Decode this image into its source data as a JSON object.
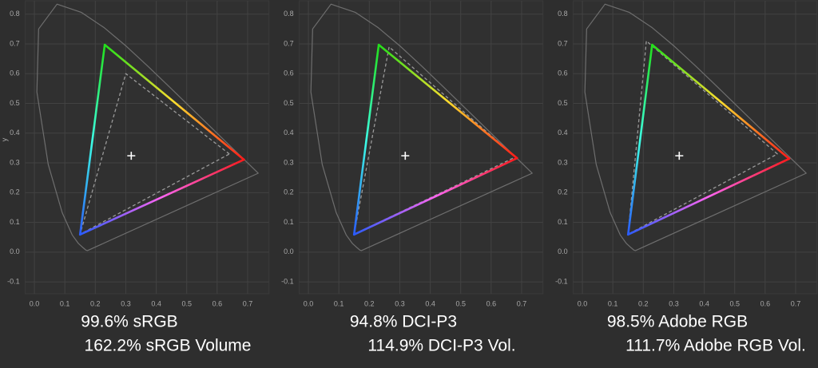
{
  "chart_data": [
    {
      "type": "gamut",
      "ylabel": "y",
      "grid": true,
      "xlim": [
        -0.03,
        0.77
      ],
      "ylim": [
        -0.14,
        0.845
      ],
      "xticks": [
        {
          "value": 0,
          "label": "0.0"
        },
        0.1,
        0.2,
        0.3,
        0.4,
        0.5,
        0.6,
        0.7
      ],
      "yticks": [
        -0.1,
        {
          "value": 0,
          "label": "0.0"
        },
        0.1,
        0.2,
        0.3,
        0.4,
        0.5,
        0.6,
        0.7,
        0.8
      ],
      "annotations": [
        "99.6% sRGB",
        "162.2% sRGB Volume"
      ],
      "series": [
        {
          "style": "outline",
          "color": "#6e6e6e",
          "x": [
            0.1741,
            0.1689,
            0.1566,
            0.144,
            0.1241,
            0.0913,
            0.0454,
            0.0082,
            0.0139,
            0.0743,
            0.1547,
            0.2296,
            0.3016,
            0.3731,
            0.4441,
            0.5125,
            0.5752,
            0.627,
            0.6658,
            0.6915,
            0.7347
          ],
          "y": [
            0.005,
            0.0069,
            0.0177,
            0.0297,
            0.0578,
            0.1327,
            0.295,
            0.5384,
            0.7502,
            0.8338,
            0.8059,
            0.7543,
            0.6923,
            0.6245,
            0.5547,
            0.4866,
            0.4242,
            0.3725,
            0.334,
            0.3083,
            0.2653
          ]
        },
        {
          "style": "dashed",
          "color": "#9a9a9a",
          "x": [
            0.64,
            0.3,
            0.15
          ],
          "y": [
            0.33,
            0.6,
            0.06
          ]
        },
        {
          "style": "gradient",
          "colors": [
            "#ff1a1a",
            "#22e01a",
            "#2a5cff"
          ],
          "x": [
            0.688,
            0.231,
            0.15
          ],
          "y": [
            0.311,
            0.697,
            0.059
          ]
        },
        {
          "style": "cross",
          "color": "#ffffff",
          "x": [
            0.318
          ],
          "y": [
            0.324
          ]
        }
      ]
    },
    {
      "type": "gamut",
      "grid": true,
      "xlim": [
        -0.03,
        0.77
      ],
      "ylim": [
        -0.14,
        0.845
      ],
      "xticks": [
        {
          "value": 0,
          "label": "0.0"
        },
        0.1,
        0.2,
        0.3,
        0.4,
        0.5,
        0.6,
        0.7
      ],
      "yticks": [
        -0.1,
        {
          "value": 0,
          "label": "0.0"
        },
        0.1,
        0.2,
        0.3,
        0.4,
        0.5,
        0.6,
        0.7,
        0.8
      ],
      "annotations": [
        "94.8% DCI-P3",
        "114.9% DCI-P3 Vol."
      ],
      "series": [
        {
          "style": "outline",
          "color": "#6e6e6e",
          "x": [
            0.1741,
            0.1689,
            0.1566,
            0.144,
            0.1241,
            0.0913,
            0.0454,
            0.0082,
            0.0139,
            0.0743,
            0.1547,
            0.2296,
            0.3016,
            0.3731,
            0.4441,
            0.5125,
            0.5752,
            0.627,
            0.6658,
            0.6915,
            0.7347
          ],
          "y": [
            0.005,
            0.0069,
            0.0177,
            0.0297,
            0.0578,
            0.1327,
            0.295,
            0.5384,
            0.7502,
            0.8338,
            0.8059,
            0.7543,
            0.6923,
            0.6245,
            0.5547,
            0.4866,
            0.4242,
            0.3725,
            0.334,
            0.3083,
            0.2653
          ]
        },
        {
          "style": "dashed",
          "color": "#9a9a9a",
          "x": [
            0.68,
            0.265,
            0.15
          ],
          "y": [
            0.32,
            0.69,
            0.06
          ]
        },
        {
          "style": "gradient",
          "colors": [
            "#ff1a1a",
            "#22e01a",
            "#2a5cff"
          ],
          "x": [
            0.685,
            0.231,
            0.15
          ],
          "y": [
            0.316,
            0.697,
            0.059
          ]
        },
        {
          "style": "cross",
          "color": "#ffffff",
          "x": [
            0.318
          ],
          "y": [
            0.324
          ]
        }
      ]
    },
    {
      "type": "gamut",
      "grid": true,
      "xlim": [
        -0.03,
        0.77
      ],
      "ylim": [
        -0.14,
        0.845
      ],
      "xticks": [
        {
          "value": 0,
          "label": "0.0"
        },
        0.1,
        0.2,
        0.3,
        0.4,
        0.5,
        0.6,
        0.7
      ],
      "yticks": [
        -0.1,
        {
          "value": 0,
          "label": "0.0"
        },
        0.1,
        0.2,
        0.3,
        0.4,
        0.5,
        0.6,
        0.7,
        0.8
      ],
      "annotations": [
        "98.5% Adobe RGB",
        "111.7% Adobe RGB Vol."
      ],
      "series": [
        {
          "style": "outline",
          "color": "#6e6e6e",
          "x": [
            0.1741,
            0.1689,
            0.1566,
            0.144,
            0.1241,
            0.0913,
            0.0454,
            0.0082,
            0.0139,
            0.0743,
            0.1547,
            0.2296,
            0.3016,
            0.3731,
            0.4441,
            0.5125,
            0.5752,
            0.627,
            0.6658,
            0.6915,
            0.7347
          ],
          "y": [
            0.005,
            0.0069,
            0.0177,
            0.0297,
            0.0578,
            0.1327,
            0.295,
            0.5384,
            0.7502,
            0.8338,
            0.8059,
            0.7543,
            0.6923,
            0.6245,
            0.5547,
            0.4866,
            0.4242,
            0.3725,
            0.334,
            0.3083,
            0.2653
          ]
        },
        {
          "style": "dashed",
          "color": "#9a9a9a",
          "x": [
            0.64,
            0.21,
            0.15
          ],
          "y": [
            0.33,
            0.71,
            0.06
          ]
        },
        {
          "style": "gradient",
          "colors": [
            "#ff1a1a",
            "#22e01a",
            "#2a5cff"
          ],
          "x": [
            0.679,
            0.229,
            0.15
          ],
          "y": [
            0.314,
            0.697,
            0.059
          ]
        },
        {
          "style": "cross",
          "color": "#ffffff",
          "x": [
            0.318
          ],
          "y": [
            0.324
          ]
        }
      ]
    }
  ]
}
